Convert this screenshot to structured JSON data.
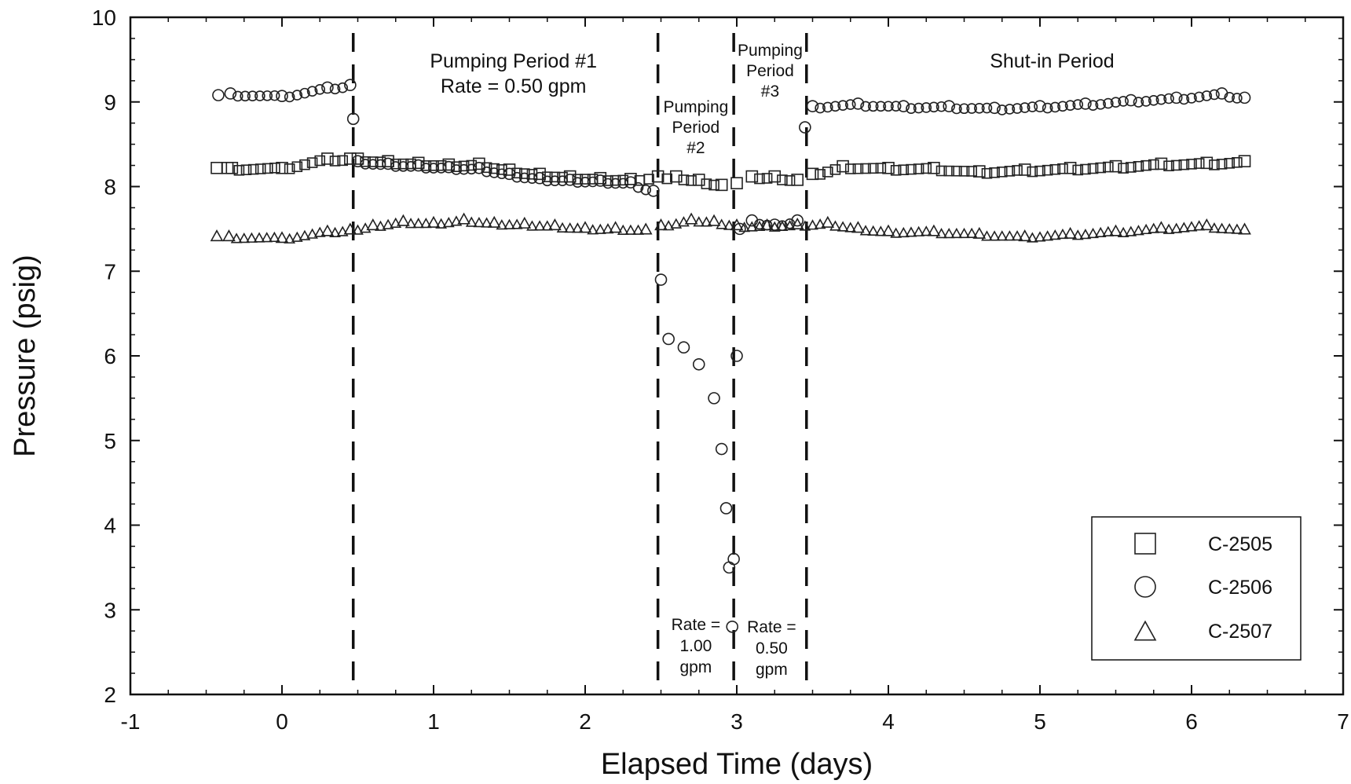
{
  "chart_data": {
    "type": "scatter",
    "title": "",
    "xlabel": "Elapsed Time (days)",
    "ylabel": "Pressure (psig)",
    "xlim": [
      -1,
      7
    ],
    "ylim": [
      2,
      10
    ],
    "x_ticks": [
      "-1",
      "0",
      "1",
      "2",
      "3",
      "4",
      "5",
      "6",
      "7"
    ],
    "y_ticks": [
      "2",
      "3",
      "4",
      "5",
      "6",
      "7",
      "8",
      "9",
      "10"
    ],
    "grid": false,
    "legend_position": "bottom-right",
    "period_boundaries": [
      0.47,
      2.48,
      2.98,
      3.46
    ],
    "annotations": {
      "period1": [
        "Pumping Period #1",
        "Rate = 0.50 gpm"
      ],
      "period2": [
        "Pumping",
        "Period",
        "#2"
      ],
      "period3": [
        "Pumping",
        "Period",
        "#3"
      ],
      "shutin": [
        "Shut-in Period"
      ],
      "rate2": [
        "Rate =",
        "1.00",
        "gpm"
      ],
      "rate3": [
        "Rate =",
        "0.50",
        "gpm"
      ]
    },
    "series": [
      {
        "name": "C-2505",
        "marker": "square",
        "points": [
          [
            -0.43,
            8.22
          ],
          [
            -0.36,
            8.22
          ],
          [
            -0.33,
            8.22
          ],
          [
            0.0,
            8.22
          ],
          [
            0.3,
            8.33
          ],
          [
            0.45,
            8.33
          ],
          [
            0.5,
            8.33
          ],
          [
            0.7,
            8.3
          ],
          [
            0.9,
            8.28
          ],
          [
            1.1,
            8.26
          ],
          [
            1.3,
            8.27
          ],
          [
            1.5,
            8.2
          ],
          [
            1.7,
            8.15
          ],
          [
            1.9,
            8.12
          ],
          [
            2.1,
            8.1
          ],
          [
            2.3,
            8.09
          ],
          [
            2.48,
            8.12
          ],
          [
            2.6,
            8.12
          ],
          [
            2.75,
            8.08
          ],
          [
            2.9,
            8.02
          ],
          [
            3.0,
            8.04
          ],
          [
            3.1,
            8.12
          ],
          [
            3.25,
            8.12
          ],
          [
            3.4,
            8.08
          ],
          [
            3.5,
            8.15
          ],
          [
            3.7,
            8.24
          ],
          [
            4.0,
            8.22
          ],
          [
            4.3,
            8.22
          ],
          [
            4.6,
            8.18
          ],
          [
            4.9,
            8.2
          ],
          [
            5.2,
            8.22
          ],
          [
            5.5,
            8.24
          ],
          [
            5.8,
            8.27
          ],
          [
            6.1,
            8.28
          ],
          [
            6.35,
            8.3
          ]
        ]
      },
      {
        "name": "C-2506",
        "marker": "circle",
        "points": [
          [
            -0.42,
            9.08
          ],
          [
            -0.34,
            9.1
          ],
          [
            0.0,
            9.07
          ],
          [
            0.3,
            9.17
          ],
          [
            0.45,
            9.2
          ],
          [
            0.47,
            8.8
          ],
          [
            0.5,
            8.3
          ],
          [
            0.7,
            8.27
          ],
          [
            0.9,
            8.25
          ],
          [
            1.1,
            8.23
          ],
          [
            1.3,
            8.22
          ],
          [
            1.5,
            8.15
          ],
          [
            1.7,
            8.1
          ],
          [
            1.9,
            8.08
          ],
          [
            2.1,
            8.07
          ],
          [
            2.3,
            8.05
          ],
          [
            2.45,
            7.95
          ],
          [
            2.5,
            6.9
          ],
          [
            2.55,
            6.2
          ],
          [
            2.65,
            6.1
          ],
          [
            2.75,
            5.9
          ],
          [
            2.85,
            5.5
          ],
          [
            2.9,
            4.9
          ],
          [
            2.93,
            4.2
          ],
          [
            2.95,
            3.5
          ],
          [
            2.97,
            2.8
          ],
          [
            2.98,
            3.6
          ],
          [
            3.0,
            6.0
          ],
          [
            3.02,
            7.5
          ],
          [
            3.1,
            7.6
          ],
          [
            3.25,
            7.55
          ],
          [
            3.4,
            7.6
          ],
          [
            3.45,
            8.7
          ],
          [
            3.5,
            8.95
          ],
          [
            3.8,
            8.98
          ],
          [
            4.1,
            8.95
          ],
          [
            4.4,
            8.95
          ],
          [
            4.7,
            8.93
          ],
          [
            5.0,
            8.95
          ],
          [
            5.3,
            8.98
          ],
          [
            5.6,
            9.02
          ],
          [
            5.9,
            9.05
          ],
          [
            6.2,
            9.1
          ],
          [
            6.35,
            9.05
          ]
        ]
      },
      {
        "name": "C-2507",
        "marker": "triangle",
        "points": [
          [
            -0.43,
            7.42
          ],
          [
            -0.35,
            7.42
          ],
          [
            0.0,
            7.4
          ],
          [
            0.3,
            7.48
          ],
          [
            0.45,
            7.5
          ],
          [
            0.6,
            7.55
          ],
          [
            0.8,
            7.6
          ],
          [
            1.0,
            7.58
          ],
          [
            1.2,
            7.62
          ],
          [
            1.4,
            7.58
          ],
          [
            1.6,
            7.57
          ],
          [
            1.8,
            7.55
          ],
          [
            2.0,
            7.52
          ],
          [
            2.2,
            7.52
          ],
          [
            2.4,
            7.5
          ],
          [
            2.5,
            7.55
          ],
          [
            2.7,
            7.62
          ],
          [
            2.85,
            7.6
          ],
          [
            3.0,
            7.55
          ],
          [
            3.2,
            7.55
          ],
          [
            3.4,
            7.56
          ],
          [
            3.6,
            7.58
          ],
          [
            3.8,
            7.52
          ],
          [
            4.0,
            7.48
          ],
          [
            4.3,
            7.48
          ],
          [
            4.6,
            7.45
          ],
          [
            4.9,
            7.42
          ],
          [
            5.2,
            7.45
          ],
          [
            5.5,
            7.48
          ],
          [
            5.8,
            7.52
          ],
          [
            6.1,
            7.55
          ],
          [
            6.35,
            7.5
          ]
        ]
      }
    ]
  }
}
